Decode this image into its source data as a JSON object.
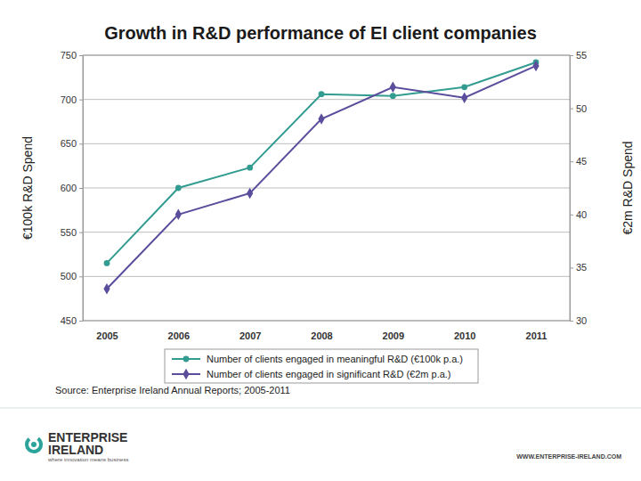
{
  "chart_data": {
    "type": "line",
    "title": "Growth in R&D performance of EI client companies",
    "y_label": "€100k R&D Spend",
    "y2_label": "€2m R&D Spend",
    "categories": [
      "2005",
      "2006",
      "2007",
      "2008",
      "2009",
      "2010",
      "2011"
    ],
    "series": [
      {
        "name": "Number of clients engaged in meaningful R&D (€100k p.a.)",
        "color": "#339c91",
        "marker": "circle",
        "values": [
          515,
          600,
          623,
          706,
          704,
          714,
          742
        ]
      },
      {
        "name": "Number of clients engaged in significant R&D (€2m p.a.)",
        "color": "#5b4d9c",
        "marker": "diamond",
        "axis": "y2",
        "values": [
          33,
          40,
          42,
          49,
          52,
          51,
          54
        ]
      }
    ],
    "ylim": [
      450,
      750
    ],
    "yticks": [
      450,
      500,
      550,
      600,
      650,
      700,
      750
    ],
    "y2lim": [
      30,
      55
    ],
    "y2ticks": [
      30,
      35,
      40,
      45,
      50,
      55
    ],
    "grid": true,
    "legend": "bottom",
    "source": "Source: Enterprise Ireland Annual Reports; 2005-2011"
  },
  "footer": {
    "logo_line_1": "ENTERPRISE",
    "logo_line_2": "IRELAND",
    "tagline": "where innovation means business",
    "url": "WWW.ENTERPRISE-IRELAND.COM"
  }
}
